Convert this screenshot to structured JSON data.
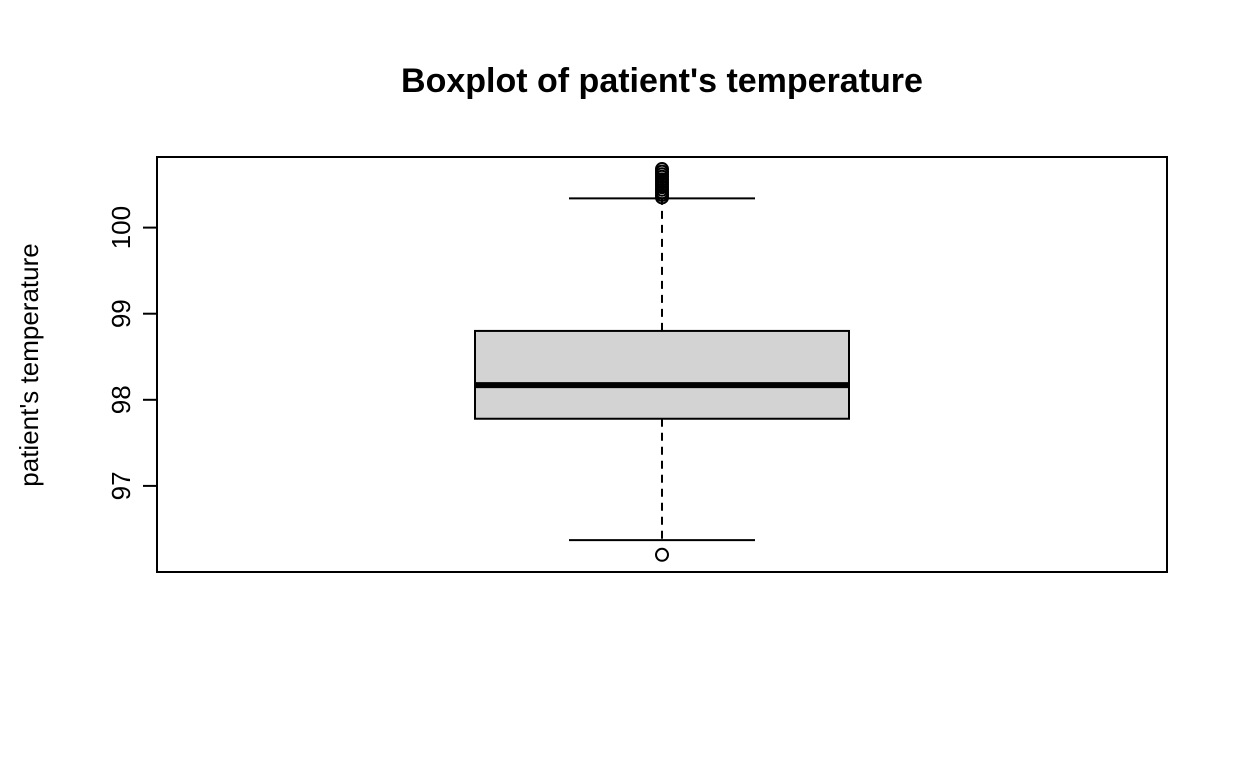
{
  "chart_data": {
    "type": "boxplot",
    "title": "Boxplot of patient's temperature",
    "xlabel": "",
    "ylabel": "patient's temperature",
    "ylim": [
      96.0,
      100.82
    ],
    "y_ticks": [
      97,
      98,
      99,
      100
    ],
    "y_tick_labels": [
      "97",
      "98",
      "99",
      "100"
    ],
    "grid": false,
    "legend": "none",
    "box_fill": "#d3d3d3",
    "boxes": [
      {
        "whisker_low": 96.37,
        "q1": 97.78,
        "median": 98.17,
        "q3": 98.8,
        "whisker_high": 100.34,
        "outliers": [
          96.2,
          100.35,
          100.38,
          100.41,
          100.44,
          100.47,
          100.5,
          100.53,
          100.56,
          100.59,
          100.62,
          100.65,
          100.68
        ]
      }
    ]
  }
}
